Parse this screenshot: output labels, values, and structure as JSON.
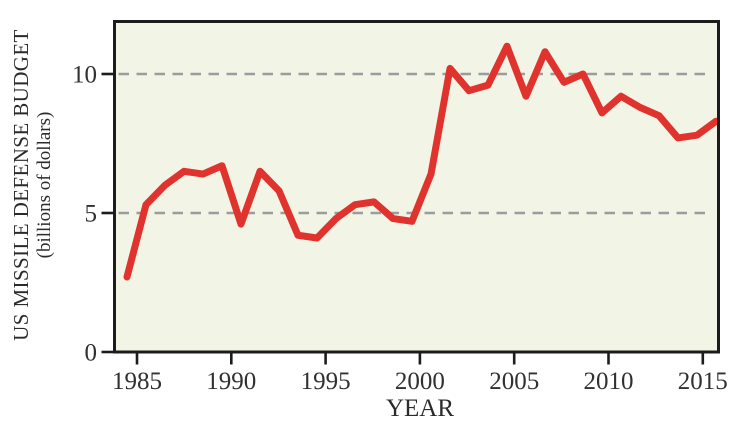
{
  "figure": {
    "y_axis_title": "US MISSILE DEFENSE BUDGET",
    "y_axis_subtitle": "(billions of dollars)",
    "x_axis_title": "YEAR"
  },
  "chart_data": {
    "type": "line",
    "title": "",
    "xlabel": "YEAR",
    "ylabel": "US MISSILE DEFENSE BUDGET (billions of dollars)",
    "x": [
      1984,
      1985,
      1986,
      1987,
      1988,
      1989,
      1990,
      1991,
      1992,
      1993,
      1994,
      1995,
      1996,
      1997,
      1998,
      1999,
      2000,
      2001,
      2002,
      2003,
      2004,
      2005,
      2006,
      2007,
      2008,
      2009,
      2010,
      2011,
      2012,
      2013,
      2014,
      2015
    ],
    "series": [
      {
        "name": "US missile defense budget (billions of dollars)",
        "values": [
          2.7,
          5.3,
          6.0,
          6.5,
          6.4,
          6.7,
          4.6,
          6.5,
          5.8,
          4.2,
          4.1,
          4.8,
          5.3,
          5.4,
          4.8,
          4.7,
          6.4,
          10.2,
          9.4,
          9.6,
          11.0,
          9.2,
          10.8,
          9.7,
          10.0,
          8.6,
          9.2,
          8.8,
          8.5,
          7.7,
          7.8,
          8.3
        ]
      }
    ],
    "xticks": [
      1985,
      1990,
      1995,
      2000,
      2005,
      2010,
      2015
    ],
    "yticks": [
      0,
      5,
      10
    ],
    "gridlines_y": [
      5,
      10
    ],
    "xlim": [
      1983.5,
      2016.1
    ],
    "ylim": [
      0,
      11.9
    ],
    "grid": "horizontal dashed gridlines at 5 and 10",
    "legend_position": "none",
    "colors": {
      "line": "#e0332e",
      "plot_bg": "#f2f4e5",
      "axis": "#1c1c1c",
      "gridline": "#9a9c9e",
      "text": "#313131",
      "page_bg": "#ffffff"
    }
  }
}
